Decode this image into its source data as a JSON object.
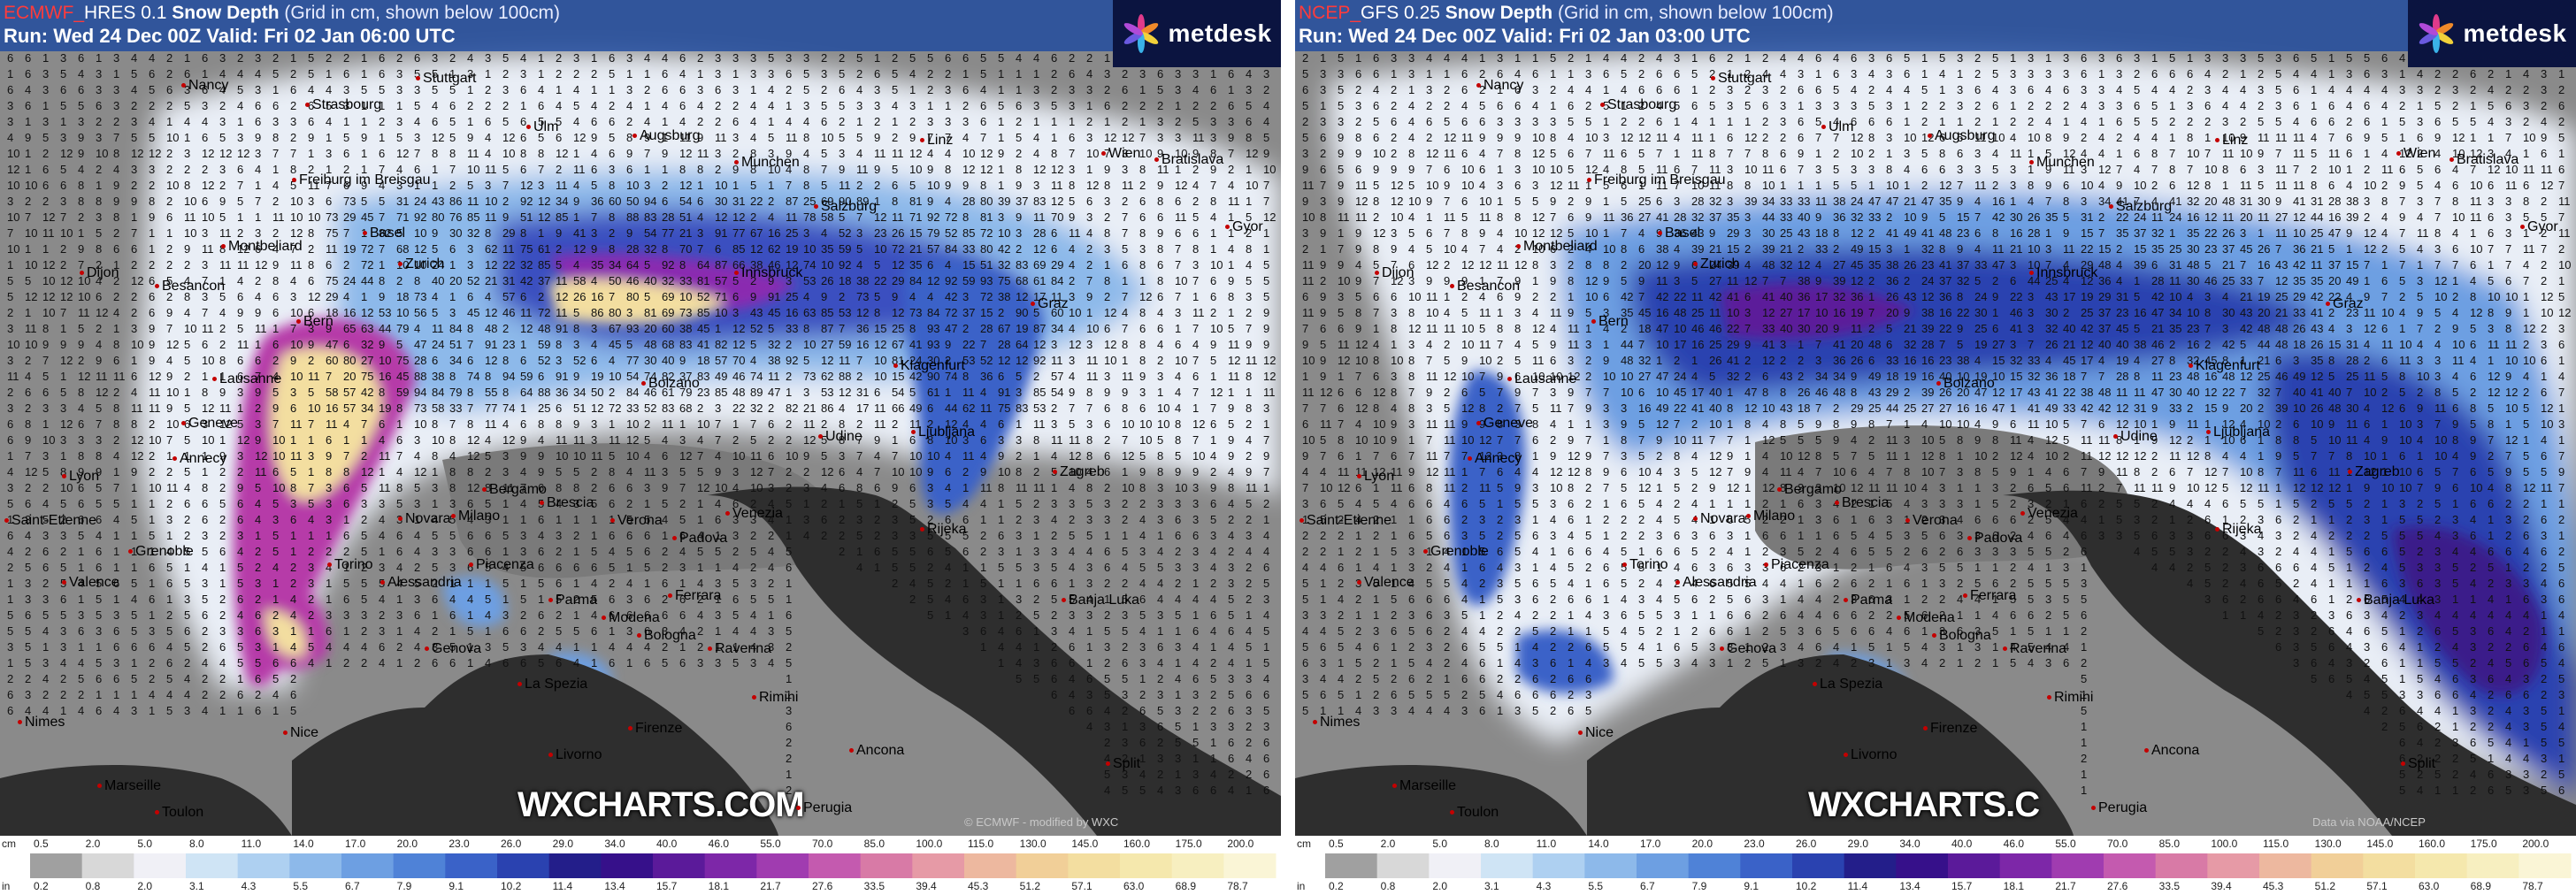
{
  "left": {
    "provider": "ECMWF",
    "model": "HRES 0.1",
    "title": "Snow Depth",
    "subtitle": "(Grid in cm, shown below 100cm)",
    "run": "Run: Wed 24 Dec 00Z Valid: Fri 02 Jan 06:00 UTC",
    "logo": "metdesk",
    "watermark": "WXCHARTS.COM",
    "copyright": "© ECMWF - modified by WXC",
    "cities": [
      "Nancy",
      "Stuttgart",
      "Strasbourg",
      "Ulm",
      "Augsburg",
      "Munchen",
      "Linz",
      "Wien",
      "Bratislava",
      "Freiburg im Breisgau",
      "Basel",
      "Zurich",
      "Dijon",
      "Besancon",
      "Montbeliard",
      "Bern",
      "Lausanne",
      "Geneve",
      "Annecy",
      "Lyon",
      "Saint-Etienne",
      "Grenoble",
      "Valence",
      "Torino",
      "Milano",
      "Novara",
      "Bergamo",
      "Brescia",
      "Verona",
      "Venezia",
      "Bolzano",
      "Innsbruck",
      "Klagenfurt",
      "Ljubljana",
      "Udine",
      "Zagreb",
      "Rijeka",
      "Padova",
      "Alessandria",
      "Piacenza",
      "Parma",
      "Modena",
      "Bologna",
      "Ferrara",
      "Ravenna",
      "Genova",
      "La Spezia",
      "Firenze",
      "Livorno",
      "Rimini",
      "Ancona",
      "Perugia",
      "Split",
      "Banja Luka",
      "Nimes",
      "Marseille",
      "Toulon",
      "Nice",
      "Gyor",
      "Graz",
      "Salzburg"
    ]
  },
  "right": {
    "provider": "NCEP",
    "model": "GFS 0.25",
    "title": "Snow Depth",
    "subtitle": "(Grid in cm, shown below 100cm)",
    "run": "Run: Wed 24 Dec 00Z Valid: Fri 02 Jan 03:00 UTC",
    "logo": "metdesk",
    "watermark": "WXCHARTS.C",
    "copyright": "Data via NOAA/NCEP",
    "cities": [
      "Nancy",
      "Stuttgart",
      "Strasbourg",
      "Ulm",
      "Augsburg",
      "Munchen",
      "Linz",
      "Wien",
      "Bratislava",
      "Freiburg im Breisgau",
      "Basel",
      "Zurich",
      "Dijon",
      "Besancon",
      "Montbeliard",
      "Bern",
      "Lausanne",
      "Geneve",
      "Annecy",
      "Lyon",
      "Saint-Etienne",
      "Grenoble",
      "Valence",
      "Torino",
      "Milano",
      "Novara",
      "Bergamo",
      "Brescia",
      "Verona",
      "Venezia",
      "Bolzano",
      "Innsbruck",
      "Klagenfurt",
      "Ljubljana",
      "Udine",
      "Zagreb",
      "Rijeka",
      "Padova",
      "Alessandria",
      "Piacenza",
      "Parma",
      "Modena",
      "Bologna",
      "Ferrara",
      "Ravenna",
      "Genova",
      "La Spezia",
      "Firenze",
      "Livorno",
      "Rimini",
      "Ancona",
      "Perugia",
      "Split",
      "Banja Luka",
      "Nimes",
      "Marseille",
      "Toulon",
      "Nice",
      "Gyor",
      "Graz",
      "Salzburg"
    ]
  },
  "legend": {
    "unit_cm": "cm",
    "unit_in": "in",
    "cm": [
      "0.5",
      "2.0",
      "5.0",
      "8.0",
      "11.0",
      "14.0",
      "17.0",
      "20.0",
      "23.0",
      "26.0",
      "29.0",
      "34.0",
      "40.0",
      "46.0",
      "55.0",
      "70.0",
      "85.0",
      "100.0",
      "115.0",
      "130.0",
      "145.0",
      "160.0",
      "175.0",
      "200.0"
    ],
    "inches": [
      "0.2",
      "0.8",
      "2.0",
      "3.1",
      "4.3",
      "5.5",
      "6.7",
      "7.9",
      "9.1",
      "10.2",
      "11.4",
      "13.4",
      "15.7",
      "18.1",
      "21.7",
      "27.6",
      "33.5",
      "39.4",
      "45.3",
      "51.2",
      "57.1",
      "63.0",
      "68.9",
      "78.7"
    ],
    "colors": [
      "#a0a0a0",
      "#d8d8d8",
      "#f0f0f6",
      "#cfe4f5",
      "#aed0f1",
      "#8db9ea",
      "#6d9fe2",
      "#4f82d7",
      "#3a62c8",
      "#2a42b0",
      "#231e8a",
      "#36108a",
      "#5b1a9a",
      "#7d27a8",
      "#a03cb0",
      "#c45aaf",
      "#d87aa6",
      "#e69aa6",
      "#edb89f",
      "#f1cf98",
      "#f3dea0",
      "#f5e8ad",
      "#f7efc0",
      "#faf5d6"
    ]
  }
}
